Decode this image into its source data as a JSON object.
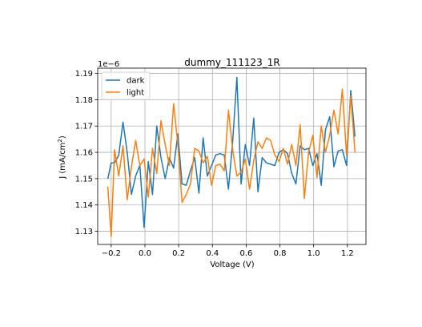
{
  "chart_data": {
    "type": "line",
    "title": "dummy_111123_1R",
    "xlabel": "Voltage (V)",
    "ylabel_text": "J (mA/cm",
    "ylabel_sup": "2",
    "ylabel_close": ")",
    "offset_text": "1e−6",
    "xlim": [
      -0.28,
      1.31
    ],
    "ylim": [
      1.125,
      1.192
    ],
    "x_ticks": [
      {
        "value": -0.2,
        "label": "−0.2"
      },
      {
        "value": 0.0,
        "label": "0.0"
      },
      {
        "value": 0.2,
        "label": "0.2"
      },
      {
        "value": 0.4,
        "label": "0.4"
      },
      {
        "value": 0.6,
        "label": "0.6"
      },
      {
        "value": 0.8,
        "label": "0.8"
      },
      {
        "value": 1.0,
        "label": "1.0"
      },
      {
        "value": 1.2,
        "label": "1.2"
      }
    ],
    "y_ticks": [
      {
        "value": 1.13,
        "label": "1.13"
      },
      {
        "value": 1.14,
        "label": "1.14"
      },
      {
        "value": 1.15,
        "label": "1.15"
      },
      {
        "value": 1.16,
        "label": "1.16"
      },
      {
        "value": 1.17,
        "label": "1.17"
      },
      {
        "value": 1.18,
        "label": "1.18"
      },
      {
        "value": 1.19,
        "label": "1.19"
      }
    ],
    "grid": true,
    "legend_position": "top-left",
    "x": [
      -0.22,
      -0.2,
      -0.18,
      -0.155,
      -0.13,
      -0.105,
      -0.08,
      -0.055,
      -0.03,
      -0.005,
      0.02,
      0.045,
      0.07,
      0.095,
      0.12,
      0.145,
      0.17,
      0.195,
      0.22,
      0.245,
      0.27,
      0.295,
      0.32,
      0.345,
      0.37,
      0.395,
      0.42,
      0.445,
      0.47,
      0.495,
      0.52,
      0.545,
      0.57,
      0.595,
      0.62,
      0.645,
      0.67,
      0.695,
      0.72,
      0.745,
      0.77,
      0.795,
      0.82,
      0.845,
      0.87,
      0.895,
      0.92,
      0.945,
      0.97,
      0.995,
      1.02,
      1.045,
      1.07,
      1.095,
      1.12,
      1.145,
      1.17,
      1.195,
      1.22,
      1.245
    ],
    "series": [
      {
        "name": "dark",
        "color": "#1f77b4",
        "values": [
          1.15,
          1.156,
          1.156,
          1.159,
          1.1715,
          1.16,
          1.144,
          1.151,
          1.155,
          1.1315,
          1.1565,
          1.144,
          1.17,
          1.158,
          1.15,
          1.158,
          1.154,
          1.167,
          1.148,
          1.1475,
          1.153,
          1.158,
          1.1445,
          1.1655,
          1.151,
          1.155,
          1.159,
          1.1595,
          1.159,
          1.146,
          1.164,
          1.1885,
          1.148,
          1.163,
          1.155,
          1.173,
          1.145,
          1.158,
          1.156,
          1.1555,
          1.155,
          1.16,
          1.161,
          1.1595,
          1.152,
          1.148,
          1.1625,
          1.161,
          1.1615,
          1.155,
          1.1595,
          1.1475,
          1.1685,
          1.1735,
          1.1545,
          1.1605,
          1.161,
          1.155,
          1.1835,
          1.166
        ]
      },
      {
        "name": "light",
        "color": "#ff7f0e",
        "values": [
          1.147,
          1.128,
          1.161,
          1.151,
          1.1625,
          1.142,
          1.1545,
          1.1645,
          1.155,
          1.1575,
          1.143,
          1.1615,
          1.152,
          1.172,
          1.163,
          1.155,
          1.1785,
          1.163,
          1.141,
          1.144,
          1.148,
          1.1615,
          1.1605,
          1.156,
          1.1585,
          1.1475,
          1.155,
          1.1555,
          1.153,
          1.176,
          1.161,
          1.151,
          1.1525,
          1.1575,
          1.146,
          1.157,
          1.164,
          1.1615,
          1.1655,
          1.1645,
          1.159,
          1.1565,
          1.1615,
          1.1555,
          1.163,
          1.155,
          1.1705,
          1.1425,
          1.16,
          1.1665,
          1.1505,
          1.17,
          1.16,
          1.1665,
          1.176,
          1.167,
          1.184,
          1.159,
          1.1815,
          1.16
        ]
      }
    ]
  }
}
